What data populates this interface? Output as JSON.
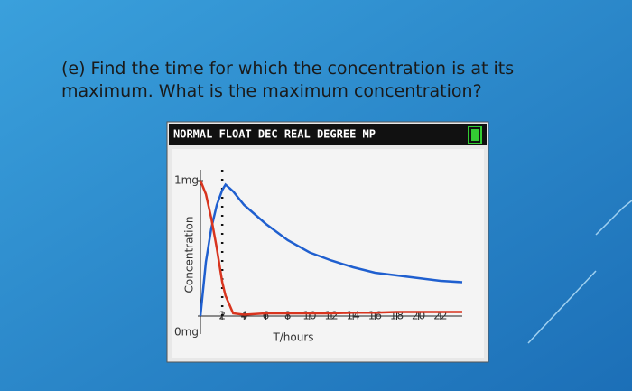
{
  "question": [
    "(e) Find the time for which the concentration is at its",
    "maximum. What is the maximum concentration?"
  ],
  "calculator_header": "NORMAL FLOAT DEC REAL DEGREE MP",
  "chart_data": {
    "type": "line",
    "y_label": "Concentration",
    "x_label": "T/hours",
    "x": [
      0,
      0.5,
      1,
      1.5,
      2,
      2.3,
      3,
      4,
      6,
      8,
      10,
      12,
      14,
      16,
      18,
      20,
      22,
      24
    ],
    "series": [
      {
        "color": "#1f5fcf",
        "values": [
          0,
          0.4,
          0.65,
          0.82,
          0.93,
          0.97,
          0.92,
          0.82,
          0.68,
          0.56,
          0.47,
          0.41,
          0.36,
          0.32,
          0.3,
          0.28,
          0.26,
          0.25
        ]
      },
      {
        "color": "#d8341e",
        "values": [
          1.0,
          0.9,
          0.72,
          0.5,
          0.25,
          0.15,
          0.02,
          0.01,
          0.02,
          0.02,
          0.02,
          0.02,
          0.025,
          0.025,
          0.03,
          0.03,
          0.03,
          0.03
        ]
      }
    ],
    "marker_x": 2,
    "xlim": [
      0,
      24
    ],
    "ylim": [
      0,
      1
    ],
    "xticks": [
      2,
      4,
      6,
      8,
      10,
      12,
      14,
      16,
      18,
      20,
      22
    ],
    "yticks": [
      {
        "value": 0,
        "label": "0mg"
      },
      {
        "value": 1,
        "label": "1mg"
      }
    ]
  }
}
